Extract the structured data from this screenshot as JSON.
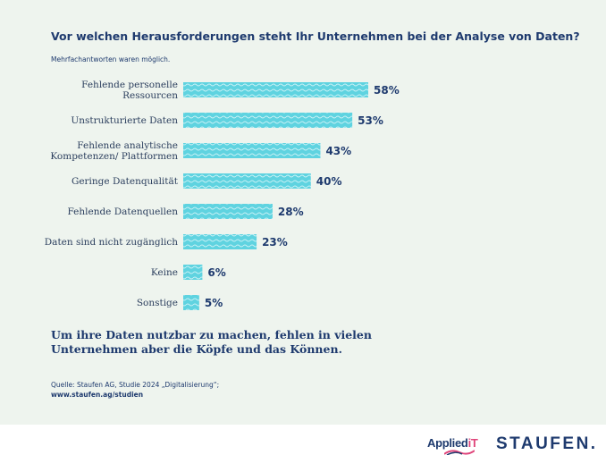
{
  "title": "Vor welchen Herausforderungen steht Ihr Unternehmen bei der Analyse von Daten?",
  "subtitle": "Mehrfachantworten waren möglich.",
  "chart_data": {
    "type": "bar",
    "orientation": "horizontal",
    "categories": [
      [
        "Fehlende personelle",
        "Ressourcen"
      ],
      [
        "Unstrukturierte Daten"
      ],
      [
        "Fehlende analytische",
        "Kompetenzen/ Plattformen"
      ],
      [
        "Geringe Datenqualität"
      ],
      [
        "Fehlende Datenquellen"
      ],
      [
        "Daten sind nicht zugänglich"
      ],
      [
        "Keine"
      ],
      [
        "Sonstige"
      ]
    ],
    "values": [
      58,
      53,
      43,
      40,
      28,
      23,
      6,
      5
    ],
    "value_labels": [
      "58%",
      "53%",
      "43%",
      "40%",
      "28%",
      "23%",
      "6%",
      "5%"
    ],
    "xlim": [
      0,
      100
    ],
    "grid": false,
    "bar_color": "#5fd3e0"
  },
  "conclusion": "Um ihre Daten nutzbar zu machen, fehlen in vielen Unternehmen aber die Köpfe und das Können.",
  "source": {
    "line1": "Quelle: Staufen AG, Studie 2024 „Digitalisierung“;",
    "url": "www.staufen.ag/studien"
  },
  "logos": {
    "applied_main": "Applied",
    "applied_it": "iT",
    "staufen": "STAUFEN."
  }
}
